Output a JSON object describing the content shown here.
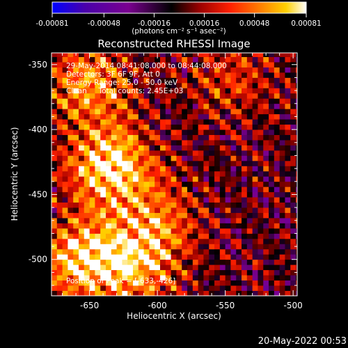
{
  "colorbar": {
    "tick_labels": [
      "-0.00081",
      "-0.00048",
      "-0.00016",
      "0.00016",
      "0.00048",
      "0.00081"
    ],
    "unit_label": "(photons cm⁻² s⁻¹ asec⁻²)",
    "range": [
      -0.00081,
      0.00081
    ],
    "colormap": [
      "#0000ff",
      "#4a00aa",
      "#7a0090",
      "#000000",
      "#9a0000",
      "#ff2000",
      "#ff8000",
      "#ffd000",
      "#ffffff"
    ]
  },
  "annotations": {
    "time_range": "29-May-2014 08:41:08.000 to 08:44:08.000",
    "detectors": "Detectors: 3F 6F 9F, Att 0",
    "energy_range": "Energy Range: 25.0 - 50.0 keV",
    "clean_line": "Clean     Total counts: 2.45E+03",
    "peak_position": "Position of Peak = [-633,-426]"
  },
  "footer": {
    "timestamp": "20-May-2022 00:53"
  },
  "chart_data": {
    "type": "heatmap",
    "title": "Reconstructed RHESSI Image",
    "xlabel": "Heliocentric X (arcsec)",
    "ylabel": "Heliocentric Y (arcsec)",
    "xlim": [
      -678,
      -497
    ],
    "ylim": [
      -528,
      -341
    ],
    "x_ticks": [
      -650,
      -600,
      -550,
      -500
    ],
    "y_ticks": [
      -350,
      -400,
      -450,
      -500
    ],
    "x_tick_labels": [
      "-650",
      "-600",
      "-550",
      "-500"
    ],
    "y_tick_labels": [
      "-350",
      "-400",
      "-450",
      "-500"
    ],
    "peak": [
      -633,
      -426
    ],
    "sources": [
      {
        "x": -635,
        "y": -428,
        "amplitude": 0.00081
      },
      {
        "x": -655,
        "y": -500,
        "amplitude": 0.00072
      },
      {
        "x": -615,
        "y": -505,
        "amplitude": 0.00052
      },
      {
        "x": -650,
        "y": -365,
        "amplitude": 0.00055
      },
      {
        "x": -600,
        "y": -470,
        "amplitude": 0.00042
      },
      {
        "x": -545,
        "y": -360,
        "amplitude": 0.0003
      }
    ],
    "grid": false
  }
}
